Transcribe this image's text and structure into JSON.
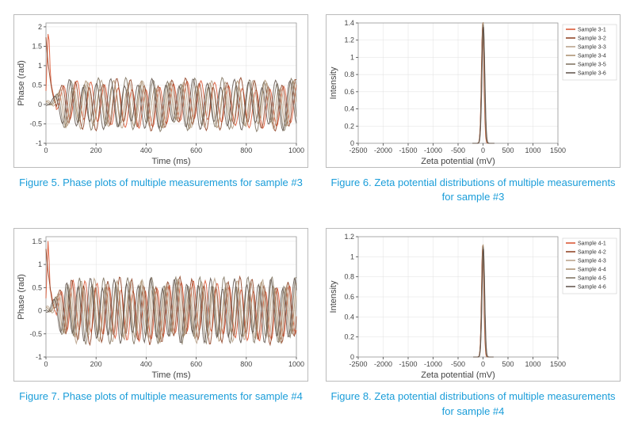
{
  "figures": [
    {
      "caption": "Figure 5. Phase plots of multiple measurements for sample #3",
      "type": "line",
      "xlabel": "Time (ms)",
      "ylabel": "Phase (rad)",
      "xlim": [
        0,
        1000
      ],
      "ylim": [
        -1,
        2.1
      ],
      "xticks": [
        0,
        200,
        400,
        600,
        800,
        1000
      ],
      "yticks": [
        -1,
        -0.5,
        0,
        0.5,
        1,
        1.5,
        2
      ],
      "background": "#ffffff",
      "grid_color": "#e0e0e0",
      "grid": true,
      "oscillation": true,
      "period": 55,
      "amp": 0.55,
      "npts": 240,
      "spike_x": 20,
      "spike_y": 2.1,
      "series": [
        {
          "name": "Sample 3-1",
          "color": "#d94f2a"
        },
        {
          "name": "Sample 3-2",
          "color": "#8b3a1a"
        },
        {
          "name": "Sample 3-3",
          "color": "#b59d85"
        },
        {
          "name": "Sample 3-4",
          "color": "#a88c6a"
        },
        {
          "name": "Sample 3-5",
          "color": "#7b6e5a"
        },
        {
          "name": "Sample 3-6",
          "color": "#5d5048"
        }
      ],
      "legend_pos": "none",
      "label_fontsize": 11,
      "tick_fontsize": 9,
      "line_width": 1
    },
    {
      "caption": "Figure 6. Zeta potential distributions of multiple measurements for sample #3",
      "type": "peak",
      "xlabel": "Zeta potential (mV)",
      "ylabel": "Intensity",
      "xlim": [
        -2500,
        1500
      ],
      "ylim": [
        0,
        1.4
      ],
      "xticks": [
        -2500,
        -2000,
        -1500,
        -1000,
        -500,
        0,
        500,
        1000,
        1500
      ],
      "yticks": [
        0,
        0.2,
        0.4,
        0.6,
        0.8,
        1.0,
        1.2,
        1.4
      ],
      "background": "#ffffff",
      "grid_color": "#e0e0e0",
      "grid": true,
      "peak_center": 0,
      "peak_width": 70,
      "peak_height": 1.38,
      "series": [
        {
          "name": "Sample 3-1",
          "color": "#d94f2a"
        },
        {
          "name": "Sample 3-2",
          "color": "#8b3a1a"
        },
        {
          "name": "Sample 3-3",
          "color": "#b59d85"
        },
        {
          "name": "Sample 3-4",
          "color": "#a88c6a"
        },
        {
          "name": "Sample 3-5",
          "color": "#7b6e5a"
        },
        {
          "name": "Sample 3-6",
          "color": "#5d5048"
        }
      ],
      "legend_pos": "right",
      "label_fontsize": 11,
      "tick_fontsize": 9,
      "line_width": 1
    },
    {
      "caption": "Figure 7. Phase plots of multiple measurements for sample #4",
      "type": "line",
      "xlabel": "Time (ms)",
      "ylabel": "Phase (rad)",
      "xlim": [
        0,
        1000
      ],
      "ylim": [
        -1,
        1.6
      ],
      "xticks": [
        0,
        200,
        400,
        600,
        800,
        1000
      ],
      "yticks": [
        -1,
        -0.5,
        0,
        0.5,
        1,
        1.5
      ],
      "background": "#ffffff",
      "grid_color": "#e0e0e0",
      "grid": true,
      "oscillation": true,
      "period": 48,
      "amp": 0.6,
      "npts": 240,
      "spike_x": 18,
      "spike_y": 1.6,
      "series": [
        {
          "name": "Sample 4-1",
          "color": "#d94f2a"
        },
        {
          "name": "Sample 4-2",
          "color": "#8b3a1a"
        },
        {
          "name": "Sample 4-3",
          "color": "#b59d85"
        },
        {
          "name": "Sample 4-4",
          "color": "#a88c6a"
        },
        {
          "name": "Sample 4-5",
          "color": "#7b6e5a"
        },
        {
          "name": "Sample 4-6",
          "color": "#5d5048"
        }
      ],
      "legend_pos": "none",
      "label_fontsize": 11,
      "tick_fontsize": 9,
      "line_width": 1
    },
    {
      "caption": "Figure 8. Zeta potential distributions of multiple measurements for sample #4",
      "type": "peak",
      "xlabel": "Zeta potential (mV)",
      "ylabel": "Intensity",
      "xlim": [
        -2500,
        1500
      ],
      "ylim": [
        0,
        1.2
      ],
      "xticks": [
        -2500,
        -2000,
        -1500,
        -1000,
        -500,
        0,
        500,
        1000,
        1500
      ],
      "yticks": [
        0,
        0.2,
        0.4,
        0.6,
        0.8,
        1.0,
        1.2
      ],
      "background": "#ffffff",
      "grid_color": "#e0e0e0",
      "grid": true,
      "peak_center": 0,
      "peak_width": 65,
      "peak_height": 1.1,
      "series": [
        {
          "name": "Sample 4-1",
          "color": "#d94f2a"
        },
        {
          "name": "Sample 4-2",
          "color": "#8b3a1a"
        },
        {
          "name": "Sample 4-3",
          "color": "#b59d85"
        },
        {
          "name": "Sample 4-4",
          "color": "#a88c6a"
        },
        {
          "name": "Sample 4-5",
          "color": "#7b6e5a"
        },
        {
          "name": "Sample 4-6",
          "color": "#5d5048"
        }
      ],
      "legend_pos": "right",
      "label_fontsize": 11,
      "tick_fontsize": 9,
      "line_width": 1
    }
  ]
}
